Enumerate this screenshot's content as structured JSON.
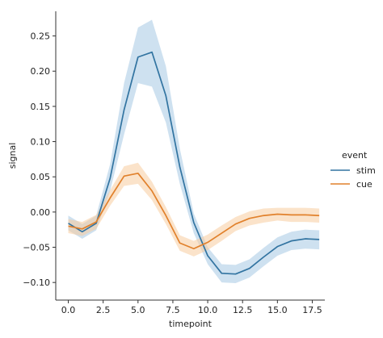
{
  "chart_data": {
    "type": "line",
    "title": "",
    "xlabel": "timepoint",
    "ylabel": "signal",
    "xlim": [
      -0.9,
      18.4
    ],
    "ylim": [
      -0.125,
      0.285
    ],
    "x_ticks": [
      0.0,
      2.5,
      5.0,
      7.5,
      10.0,
      12.5,
      15.0,
      17.5
    ],
    "x_tick_labels": [
      "0.0",
      "2.5",
      "5.0",
      "7.5",
      "10.0",
      "12.5",
      "15.0",
      "17.5"
    ],
    "y_ticks": [
      -0.1,
      -0.05,
      0.0,
      0.05,
      0.1,
      0.15,
      0.2,
      0.25
    ],
    "y_tick_labels": [
      "−0.10",
      "−0.05",
      "0.00",
      "0.05",
      "0.10",
      "0.15",
      "0.20",
      "0.25"
    ],
    "grid": false,
    "legend": {
      "title": "event",
      "placement": "right",
      "entries": [
        "stim",
        "cue"
      ]
    },
    "x": [
      0,
      1,
      2,
      3,
      4,
      5,
      6,
      7,
      8,
      9,
      10,
      11,
      12,
      13,
      14,
      15,
      16,
      17,
      18
    ],
    "series": [
      {
        "name": "stim",
        "color": "#3274a1",
        "band_color": "#a6c8e3",
        "values": [
          -0.016,
          -0.028,
          -0.016,
          0.048,
          0.145,
          0.22,
          0.227,
          0.165,
          0.064,
          -0.015,
          -0.062,
          -0.087,
          -0.088,
          -0.08,
          -0.064,
          -0.049,
          -0.041,
          -0.038,
          -0.039
        ],
        "ci_lower": [
          -0.026,
          -0.038,
          -0.026,
          0.03,
          0.11,
          0.183,
          0.178,
          0.127,
          0.04,
          -0.03,
          -0.074,
          -0.1,
          -0.101,
          -0.093,
          -0.077,
          -0.062,
          -0.054,
          -0.052,
          -0.053
        ],
        "ci_upper": [
          -0.005,
          -0.017,
          -0.005,
          0.068,
          0.183,
          0.262,
          0.273,
          0.207,
          0.09,
          -0.002,
          -0.05,
          -0.074,
          -0.075,
          -0.067,
          -0.051,
          -0.036,
          -0.028,
          -0.025,
          -0.026
        ]
      },
      {
        "name": "cue",
        "color": "#e1812c",
        "band_color": "#f8cc9e",
        "values": [
          -0.02,
          -0.024,
          -0.014,
          0.02,
          0.051,
          0.055,
          0.03,
          -0.005,
          -0.044,
          -0.052,
          -0.043,
          -0.03,
          -0.017,
          -0.009,
          -0.005,
          -0.003,
          -0.004,
          -0.004,
          -0.005
        ],
        "ci_lower": [
          -0.03,
          -0.034,
          -0.024,
          0.009,
          0.037,
          0.04,
          0.017,
          -0.017,
          -0.055,
          -0.063,
          -0.054,
          -0.041,
          -0.027,
          -0.019,
          -0.015,
          -0.012,
          -0.014,
          -0.014,
          -0.015
        ],
        "ci_upper": [
          -0.01,
          -0.014,
          -0.004,
          0.031,
          0.065,
          0.07,
          0.043,
          0.007,
          -0.033,
          -0.041,
          -0.032,
          -0.019,
          -0.007,
          0.001,
          0.005,
          0.006,
          0.006,
          0.006,
          0.005
        ]
      }
    ]
  }
}
